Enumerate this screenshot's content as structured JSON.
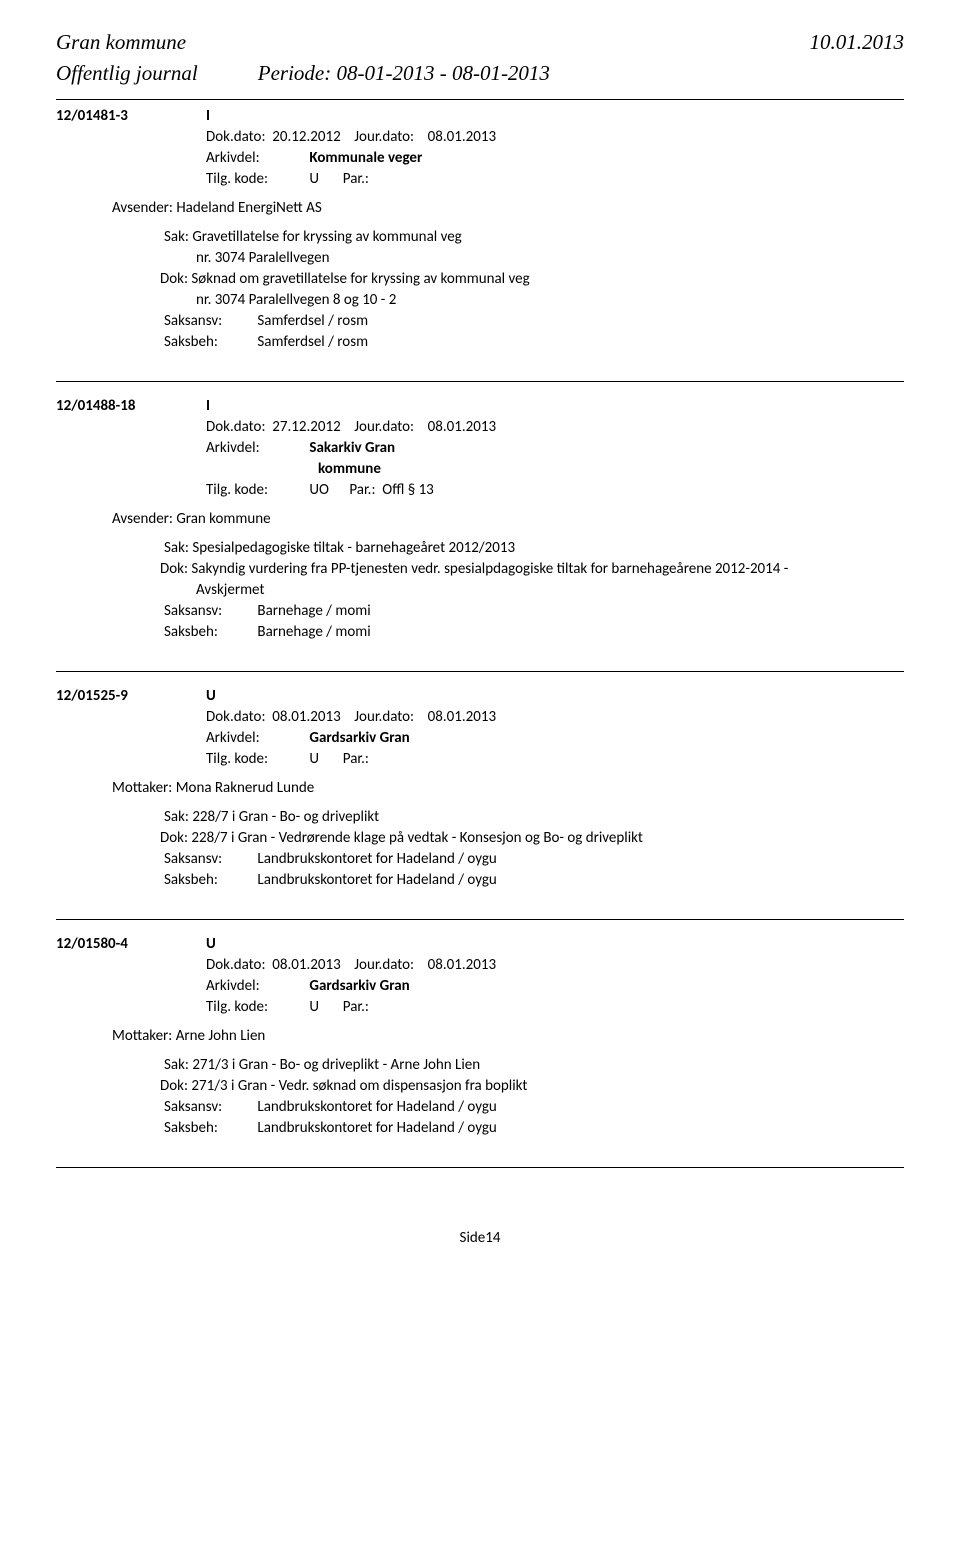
{
  "header": {
    "org": "Gran kommune",
    "date": "10.01.2013",
    "journal": "Offentlig journal",
    "period": "Periode: 08-01-2013 - 08-01-2013"
  },
  "entries": [
    {
      "caseid": "12/01481-3",
      "iu": "I",
      "dokdato_lbl": "Dok.dato:",
      "dokdato": "20.12.2012",
      "jourdato_lbl": "Jour.dato:",
      "jourdato": "08.01.2013",
      "arkiv_lbl": "Arkivdel:",
      "arkiv_val": "Kommunale veger",
      "tilg_lbl": "Tilg. kode:",
      "tilg_val": "U",
      "par_lbl": "Par.:",
      "par_val": "",
      "sender_lbl": "Avsender:",
      "sender": "Hadeland EnergiNett AS",
      "sak_lbl": "Sak:",
      "sak": "Gravetillatelse for kryssing av kommunal veg",
      "sak_cont": "nr. 3074 Paralellvegen",
      "dok_lbl": "Dok:",
      "dok": "Søknad om gravetillatelse for kryssing av kommunal veg",
      "dok_cont": "nr. 3074 Paralellvegen 8 og 10 - 2",
      "saksansv_lbl": "Saksansv:",
      "saksansv": "Samferdsel / rosm",
      "saksbeh_lbl": "Saksbeh:",
      "saksbeh": "Samferdsel / rosm"
    },
    {
      "caseid": "12/01488-18",
      "iu": "I",
      "dokdato_lbl": "Dok.dato:",
      "dokdato": "27.12.2012",
      "jourdato_lbl": "Jour.dato:",
      "jourdato": "08.01.2013",
      "arkiv_lbl": "Arkivdel:",
      "arkiv_val": "Sakarkiv Gran",
      "arkiv_cont": "kommune",
      "tilg_lbl": "Tilg. kode:",
      "tilg_val": "UO",
      "par_lbl": "Par.:",
      "par_val": "Offl § 13",
      "sender_lbl": "Avsender:",
      "sender": "Gran kommune",
      "sak_lbl": "Sak:",
      "sak": "Spesialpedagogiske tiltak - barnehageåret 2012/2013",
      "dok_lbl": "Dok:",
      "dok": "Sakyndig vurdering fra PP-tjenesten vedr. spesialpdagogiske tiltak for barnehageårene 2012-2014 -",
      "dok_cont": "Avskjermet",
      "saksansv_lbl": "Saksansv:",
      "saksansv": "Barnehage / momi",
      "saksbeh_lbl": "Saksbeh:",
      "saksbeh": "Barnehage / momi"
    },
    {
      "caseid": "12/01525-9",
      "iu": "U",
      "dokdato_lbl": "Dok.dato:",
      "dokdato": "08.01.2013",
      "jourdato_lbl": "Jour.dato:",
      "jourdato": "08.01.2013",
      "arkiv_lbl": "Arkivdel:",
      "arkiv_val": "Gardsarkiv Gran",
      "tilg_lbl": "Tilg. kode:",
      "tilg_val": "U",
      "par_lbl": "Par.:",
      "par_val": "",
      "sender_lbl": "Mottaker:",
      "sender": "Mona Raknerud Lunde",
      "sak_lbl": "Sak:",
      "sak": "228/7 i Gran - Bo- og driveplikt",
      "dok_lbl": "Dok:",
      "dok": "228/7 i Gran - Vedrørende klage på vedtak - Konsesjon og Bo- og driveplikt",
      "saksansv_lbl": "Saksansv:",
      "saksansv": "Landbrukskontoret for Hadeland / oygu",
      "saksbeh_lbl": "Saksbeh:",
      "saksbeh": "Landbrukskontoret for Hadeland / oygu"
    },
    {
      "caseid": "12/01580-4",
      "iu": "U",
      "dokdato_lbl": "Dok.dato:",
      "dokdato": "08.01.2013",
      "jourdato_lbl": "Jour.dato:",
      "jourdato": "08.01.2013",
      "arkiv_lbl": "Arkivdel:",
      "arkiv_val": "Gardsarkiv Gran",
      "tilg_lbl": "Tilg. kode:",
      "tilg_val": "U",
      "par_lbl": "Par.:",
      "par_val": "",
      "sender_lbl": "Mottaker:",
      "sender": "Arne John Lien",
      "sak_lbl": "Sak:",
      "sak": "271/3   i Gran - Bo- og driveplikt - Arne John Lien",
      "dok_lbl": "Dok:",
      "dok": "271/3 i Gran - Vedr. søknad om dispensasjon fra boplikt",
      "saksansv_lbl": "Saksansv:",
      "saksansv": "Landbrukskontoret for Hadeland / oygu",
      "saksbeh_lbl": "Saksbeh:",
      "saksbeh": "Landbrukskontoret for Hadeland / oygu"
    }
  ],
  "footer": "Side14"
}
